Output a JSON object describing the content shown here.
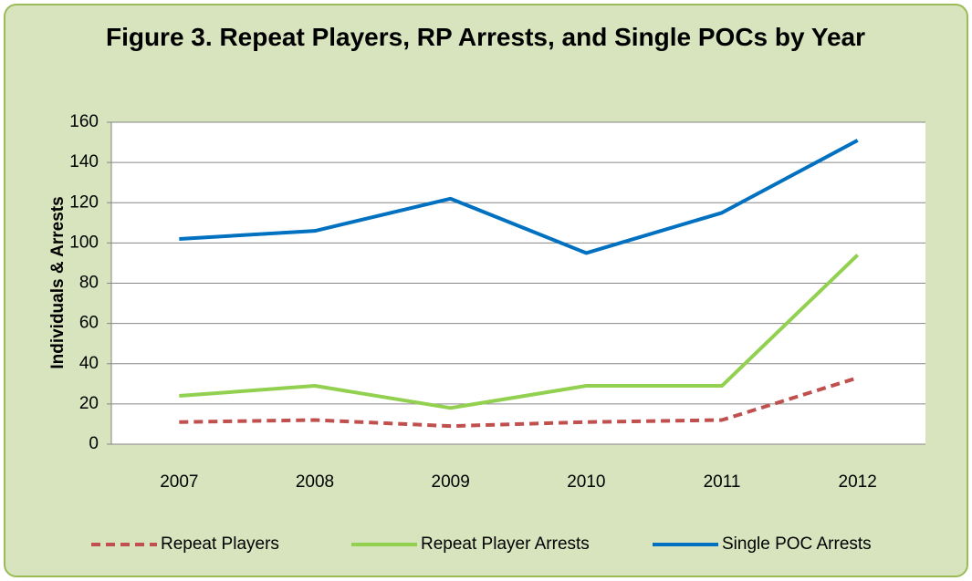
{
  "chart_data": {
    "type": "line",
    "title": "Figure 3. Repeat Players, RP Arrests, and Single POCs by Year",
    "y_label": "Individuals & Arrests",
    "categories": [
      "2007",
      "2008",
      "2009",
      "2010",
      "2011",
      "2012"
    ],
    "series": [
      {
        "name": "Repeat Players",
        "color": "#c0504d",
        "dashed": true,
        "values": [
          11,
          12,
          9,
          11,
          12,
          33
        ]
      },
      {
        "name": "Repeat Player Arrests",
        "color": "#92d050",
        "dashed": false,
        "values": [
          24,
          29,
          18,
          29,
          29,
          94
        ]
      },
      {
        "name": "Single POC Arrests",
        "color": "#0070c0",
        "dashed": false,
        "values": [
          102,
          106,
          122,
          95,
          115,
          151
        ]
      }
    ],
    "ylim": [
      0,
      160
    ],
    "yticks": [
      0,
      20,
      40,
      60,
      80,
      100,
      120,
      140,
      160
    ],
    "grid": true,
    "legend": "bottom"
  }
}
